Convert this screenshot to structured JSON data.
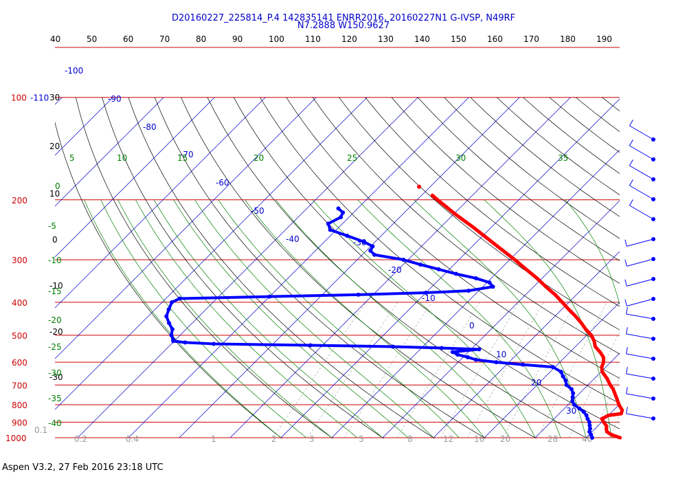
{
  "header": {
    "line1": "D20160227_225814_P.4 142835141 ENRR2016, 20160227N1 G-IVSP, N49RF",
    "line2": "N7.2888 W150.9627"
  },
  "footer": "Aspen V3.2, 27 Feb 2016  23:18 UTC",
  "chart_data": {
    "type": "skew-t",
    "colors": {
      "isobar": "#cc0000",
      "isotherm": "#0000cc",
      "dry_adiabat": "#000000",
      "moist_adiabat": "#008000",
      "mixing_ratio": "#999999",
      "temperature": "#ff0000",
      "dewpoint": "#0000ff",
      "wind": "#0000ff"
    },
    "pressure_levels": [
      100,
      200,
      300,
      400,
      500,
      600,
      700,
      800,
      900,
      1000
    ],
    "pressure_labels": [
      "100",
      "200",
      "300",
      "400",
      "500",
      "600",
      "700",
      "800",
      "900",
      "1000"
    ],
    "left_extra_label": "-110",
    "top_tick_labels": [
      "40",
      "50",
      "60",
      "70",
      "80",
      "90",
      "100",
      "110",
      "120",
      "130",
      "140",
      "150",
      "160",
      "170",
      "180",
      "190"
    ],
    "isotherm_labels": [
      "-100",
      "-90",
      "-80",
      "-70",
      "-60",
      "-50",
      "-40",
      "-30",
      "-20",
      "-10",
      "0",
      "10",
      "20",
      "30"
    ],
    "dry_adiabat_labels": [
      "30",
      "20",
      "10",
      "0",
      "-10",
      "-20",
      "-30"
    ],
    "moist_adiabat_labels": [
      "5",
      "10",
      "15",
      "20",
      "25",
      "30",
      "35"
    ],
    "moist_left_labels": [
      "0",
      "-5",
      "-10",
      "-15",
      "-20",
      "-25",
      "-30",
      "-35",
      "-40"
    ],
    "mixing_ratio_labels": [
      "0.1",
      "0.2",
      "0.4",
      "1",
      "2",
      "3",
      "5",
      "8",
      "12",
      "16",
      "20",
      "28",
      "40"
    ],
    "temperature": [
      {
        "p": 1000,
        "t": 26.7
      },
      {
        "p": 980,
        "t": 24.4
      },
      {
        "p": 960,
        "t": 22.9
      },
      {
        "p": 940,
        "t": 22.2
      },
      {
        "p": 925,
        "t": 21.8
      },
      {
        "p": 900,
        "t": 20.4
      },
      {
        "p": 880,
        "t": 19.4
      },
      {
        "p": 860,
        "t": 20.0
      },
      {
        "p": 850,
        "t": 22.2
      },
      {
        "p": 830,
        "t": 21.7
      },
      {
        "p": 800,
        "t": 20.0
      },
      {
        "p": 770,
        "t": 18.5
      },
      {
        "p": 740,
        "t": 16.9
      },
      {
        "p": 720,
        "t": 15.8
      },
      {
        "p": 700,
        "t": 14.4
      },
      {
        "p": 670,
        "t": 12.5
      },
      {
        "p": 640,
        "t": 10.2
      },
      {
        "p": 620,
        "t": 9.2
      },
      {
        "p": 600,
        "t": 8.6
      },
      {
        "p": 580,
        "t": 7.6
      },
      {
        "p": 560,
        "t": 5.9
      },
      {
        "p": 540,
        "t": 3.9
      },
      {
        "p": 520,
        "t": 2.6
      },
      {
        "p": 500,
        "t": 0.9
      },
      {
        "p": 480,
        "t": -1.4
      },
      {
        "p": 460,
        "t": -3.5
      },
      {
        "p": 440,
        "t": -5.9
      },
      {
        "p": 420,
        "t": -8.6
      },
      {
        "p": 400,
        "t": -11.3
      },
      {
        "p": 380,
        "t": -14.2
      },
      {
        "p": 360,
        "t": -17.6
      },
      {
        "p": 340,
        "t": -21.0
      },
      {
        "p": 320,
        "t": -24.9
      },
      {
        "p": 300,
        "t": -29.0
      },
      {
        "p": 280,
        "t": -33.6
      },
      {
        "p": 260,
        "t": -38.5
      },
      {
        "p": 240,
        "t": -43.8
      },
      {
        "p": 220,
        "t": -49.8
      },
      {
        "p": 210,
        "t": -52.8
      },
      {
        "p": 200,
        "t": -56.0
      },
      {
        "p": 194,
        "t": -57.9
      }
    ],
    "temperature_isolated": {
      "p": 183,
      "t": -62.2
    },
    "dewpoint": [
      {
        "p": 1000,
        "t": 21.2
      },
      {
        "p": 980,
        "t": 20.4
      },
      {
        "p": 960,
        "t": 19.5
      },
      {
        "p": 940,
        "t": 19.0
      },
      {
        "p": 920,
        "t": 18.3
      },
      {
        "p": 900,
        "t": 17.6
      },
      {
        "p": 880,
        "t": 16.6
      },
      {
        "p": 860,
        "t": 15.7
      },
      {
        "p": 840,
        "t": 14.5
      },
      {
        "p": 820,
        "t": 12.9
      },
      {
        "p": 800,
        "t": 11.2
      },
      {
        "p": 780,
        "t": 10.1
      },
      {
        "p": 760,
        "t": 9.4
      },
      {
        "p": 740,
        "t": 8.7
      },
      {
        "p": 720,
        "t": 7.6
      },
      {
        "p": 700,
        "t": 5.8
      },
      {
        "p": 680,
        "t": 4.8
      },
      {
        "p": 660,
        "t": 3.4
      },
      {
        "p": 640,
        "t": 2.1
      },
      {
        "p": 620,
        "t": -0.4
      },
      {
        "p": 610,
        "t": -6.8
      },
      {
        "p": 600,
        "t": -12.5
      },
      {
        "p": 590,
        "t": -17.0
      },
      {
        "p": 580,
        "t": -19.1
      },
      {
        "p": 570,
        "t": -21.6
      },
      {
        "p": 560,
        "t": -23.1
      },
      {
        "p": 550,
        "t": -18.4
      },
      {
        "p": 545,
        "t": -26.0
      },
      {
        "p": 540,
        "t": -35.9
      },
      {
        "p": 535,
        "t": -52.4
      },
      {
        "p": 530,
        "t": -71.7
      },
      {
        "p": 525,
        "t": -77.6
      },
      {
        "p": 520,
        "t": -80.2
      },
      {
        "p": 515,
        "t": -80.5
      },
      {
        "p": 500,
        "t": -81.7
      },
      {
        "p": 480,
        "t": -82.7
      },
      {
        "p": 460,
        "t": -84.6
      },
      {
        "p": 440,
        "t": -86.4
      },
      {
        "p": 420,
        "t": -87.3
      },
      {
        "p": 400,
        "t": -88.1
      },
      {
        "p": 390,
        "t": -87.3
      },
      {
        "p": 385,
        "t": -70.0
      },
      {
        "p": 380,
        "t": -52.9
      },
      {
        "p": 375,
        "t": -40.0
      },
      {
        "p": 370,
        "t": -32.0
      },
      {
        "p": 360,
        "t": -28.0
      },
      {
        "p": 350,
        "t": -29.5
      },
      {
        "p": 340,
        "t": -33.0
      },
      {
        "p": 330,
        "t": -37.8
      },
      {
        "p": 320,
        "t": -42.1
      },
      {
        "p": 310,
        "t": -46.6
      },
      {
        "p": 300,
        "t": -50.9
      },
      {
        "p": 290,
        "t": -57.6
      },
      {
        "p": 282,
        "t": -59.2
      },
      {
        "p": 274,
        "t": -59.6
      },
      {
        "p": 266,
        "t": -62.1
      },
      {
        "p": 255,
        "t": -66.7
      },
      {
        "p": 245,
        "t": -71.2
      },
      {
        "p": 235,
        "t": -72.8
      },
      {
        "p": 225,
        "t": -71.6
      },
      {
        "p": 218,
        "t": -72.1
      },
      {
        "p": 212,
        "t": -73.8
      }
    ],
    "wind_barbs": 15
  }
}
